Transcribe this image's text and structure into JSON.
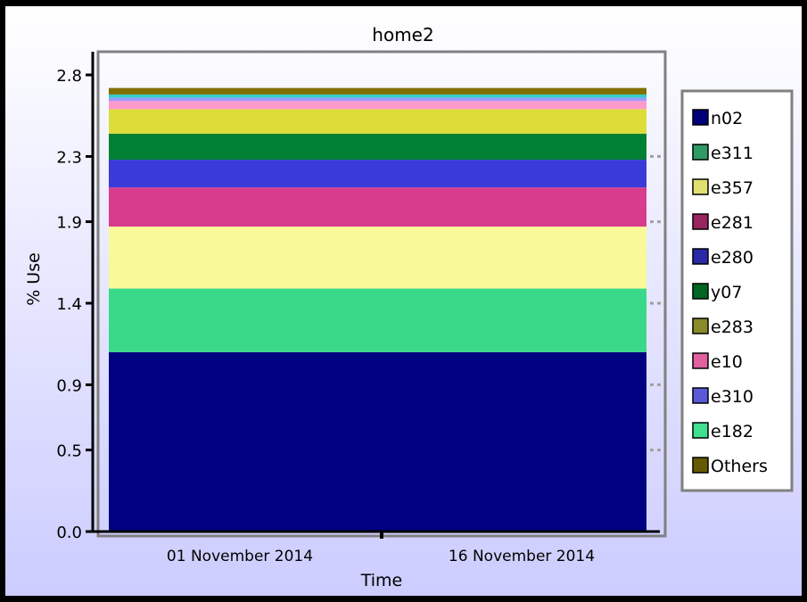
{
  "colors": {
    "background_top": "#ffffff",
    "background_bottom": "#ccccff",
    "plot_border": "#808080",
    "legend_border": "#808080"
  },
  "chart_data": {
    "type": "area",
    "stacked": true,
    "title": "home2",
    "xlabel": "Time",
    "ylabel": "% Use",
    "ylim": [
      0.0,
      2.8
    ],
    "yticks": [
      "0.0",
      "0.5",
      "0.9",
      "1.4",
      "1.9",
      "2.3",
      "2.8"
    ],
    "xticks": [
      "01 November 2014",
      "16 November 2014"
    ],
    "legend_position": "right",
    "grid": false,
    "series": [
      {
        "name": "n02",
        "value": 1.1,
        "color": "#000080",
        "swatch": "#00007a"
      },
      {
        "name": "e311",
        "value": 0.39,
        "color": "#3ad98a",
        "swatch": "#2e9a64"
      },
      {
        "name": "e357",
        "value": 0.38,
        "color": "#f9f99a",
        "swatch": "#e0e070"
      },
      {
        "name": "e281",
        "value": 0.24,
        "color": "#d83c8c",
        "swatch": "#9a2460"
      },
      {
        "name": "e280",
        "value": 0.17,
        "color": "#3a3ad8",
        "swatch": "#2a2aa8"
      },
      {
        "name": "y07",
        "value": 0.16,
        "color": "#008033",
        "swatch": "#006622"
      },
      {
        "name": "e283",
        "value": 0.15,
        "color": "#dddd3a",
        "swatch": "#8a8a28"
      },
      {
        "name": "e10",
        "value": 0.05,
        "color": "#ff99cc",
        "swatch": "#e060a0"
      },
      {
        "name": "e310",
        "value": 0.02,
        "color": "#9999ff",
        "swatch": "#5a5ad8"
      },
      {
        "name": "e182",
        "value": 0.02,
        "color": "#33cccc",
        "swatch": "#40e090"
      },
      {
        "name": "Others",
        "value": 0.04,
        "color": "#807000",
        "swatch": "#665a00"
      }
    ]
  }
}
